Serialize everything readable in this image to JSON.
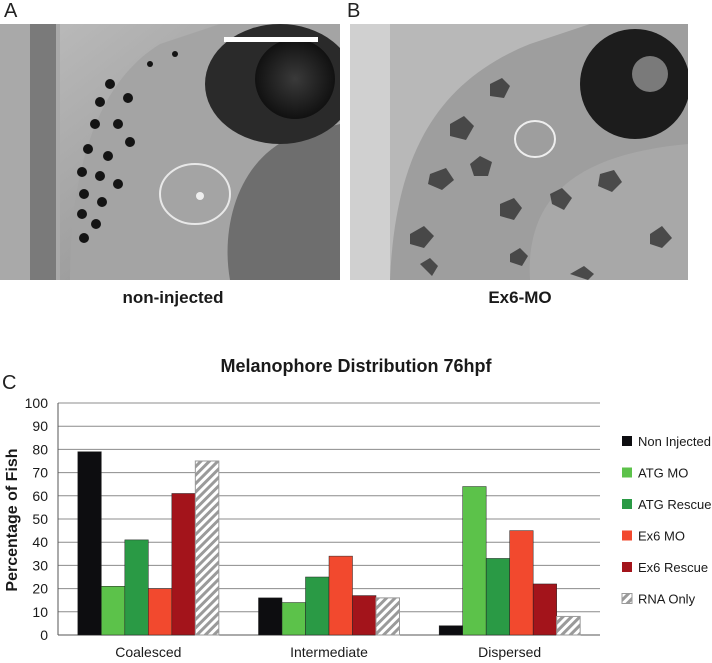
{
  "panels": {
    "a": {
      "letter": "A",
      "caption": "non-injected"
    },
    "b": {
      "letter": "B",
      "caption": "Ex6-MO"
    },
    "c": {
      "letter": "C"
    }
  },
  "chart_data": {
    "type": "bar",
    "title": "Melanophore Distribution 76hpf",
    "ylabel": "Percentage of Fish",
    "xlabel": "",
    "ylim": [
      0,
      100
    ],
    "yticks": [
      0,
      10,
      20,
      30,
      40,
      50,
      60,
      70,
      80,
      90,
      100
    ],
    "grid": true,
    "legend_position": "right",
    "categories": [
      "Coalesced",
      "Intermediate",
      "Dispersed"
    ],
    "series": [
      {
        "name": "Non Injected",
        "color": "#0d0d10",
        "pattern": "solid",
        "values": [
          79,
          16,
          4
        ]
      },
      {
        "name": "ATG MO",
        "color": "#5cc24a",
        "pattern": "solid",
        "values": [
          21,
          14,
          64
        ]
      },
      {
        "name": "ATG Rescue",
        "color": "#2a9a45",
        "pattern": "solid",
        "values": [
          41,
          25,
          33
        ]
      },
      {
        "name": "Ex6 MO",
        "color": "#f2492e",
        "pattern": "solid",
        "values": [
          20,
          34,
          45
        ]
      },
      {
        "name": "Ex6 Rescue",
        "color": "#a3141b",
        "pattern": "solid",
        "values": [
          61,
          17,
          22
        ]
      },
      {
        "name": "RNA Only",
        "color": "#9a9a9a",
        "pattern": "hatched",
        "values": [
          75,
          16,
          8
        ]
      }
    ]
  }
}
